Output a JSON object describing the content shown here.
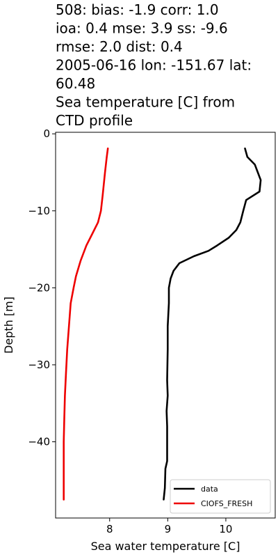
{
  "chart_data": {
    "type": "line",
    "title_lines": [
      "508: bias: -1.9  corr: 1.0",
      "ioa: 0.4  mse: 3.9  ss: -9.6",
      "rmse: 2.0  dist: 0.4",
      "2005-06-16 lon: -151.67 lat:",
      "60.48",
      "Sea temperature [C] from",
      "CTD profile"
    ],
    "xlabel": "Sea water temperature [C]",
    "ylabel": "Depth [m]",
    "xlim": [
      7.07,
      10.85
    ],
    "ylim": [
      -49.9,
      0.2
    ],
    "xticks": [
      8,
      9,
      10
    ],
    "yticks": [
      0,
      -10,
      -20,
      -30,
      -40
    ],
    "xtick_labels": [
      "8",
      "9",
      "10"
    ],
    "ytick_labels": [
      "0",
      "−10",
      "−20",
      "−30",
      "−40"
    ],
    "legend_position": "lower-right",
    "series": [
      {
        "name": "data",
        "color": "#000000",
        "points": [
          [
            10.33,
            -1.9
          ],
          [
            10.37,
            -3.0
          ],
          [
            10.5,
            -4.0
          ],
          [
            10.55,
            -5.0
          ],
          [
            10.6,
            -6.0
          ],
          [
            10.58,
            -7.5
          ],
          [
            10.35,
            -8.6
          ],
          [
            10.3,
            -10.0
          ],
          [
            10.25,
            -11.5
          ],
          [
            10.18,
            -12.5
          ],
          [
            10.05,
            -13.5
          ],
          [
            9.85,
            -14.5
          ],
          [
            9.7,
            -15.2
          ],
          [
            9.45,
            -15.9
          ],
          [
            9.2,
            -16.8
          ],
          [
            9.1,
            -17.8
          ],
          [
            9.05,
            -18.8
          ],
          [
            9.02,
            -20.0
          ],
          [
            9.02,
            -22.0
          ],
          [
            9.0,
            -25.0
          ],
          [
            9.0,
            -28.0
          ],
          [
            8.99,
            -32.0
          ],
          [
            9.0,
            -34.0
          ],
          [
            8.98,
            -36.0
          ],
          [
            8.99,
            -38.0
          ],
          [
            8.99,
            -41.0
          ],
          [
            8.99,
            -42.5
          ],
          [
            8.96,
            -43.5
          ],
          [
            8.95,
            -46.0
          ],
          [
            8.93,
            -47.5
          ]
        ]
      },
      {
        "name": "CIOFS_FRESH",
        "color": "#ee0000",
        "points": [
          [
            7.97,
            -1.9
          ],
          [
            7.95,
            -3.0
          ],
          [
            7.92,
            -5.0
          ],
          [
            7.88,
            -8.0
          ],
          [
            7.85,
            -10.0
          ],
          [
            7.8,
            -11.5
          ],
          [
            7.7,
            -13.0
          ],
          [
            7.6,
            -14.5
          ],
          [
            7.5,
            -16.5
          ],
          [
            7.42,
            -18.5
          ],
          [
            7.38,
            -20.0
          ],
          [
            7.33,
            -22.0
          ],
          [
            7.3,
            -25.0
          ],
          [
            7.27,
            -28.0
          ],
          [
            7.25,
            -31.0
          ],
          [
            7.23,
            -34.0
          ],
          [
            7.22,
            -37.0
          ],
          [
            7.21,
            -40.0
          ],
          [
            7.21,
            -44.0
          ],
          [
            7.21,
            -47.5
          ]
        ]
      }
    ]
  }
}
